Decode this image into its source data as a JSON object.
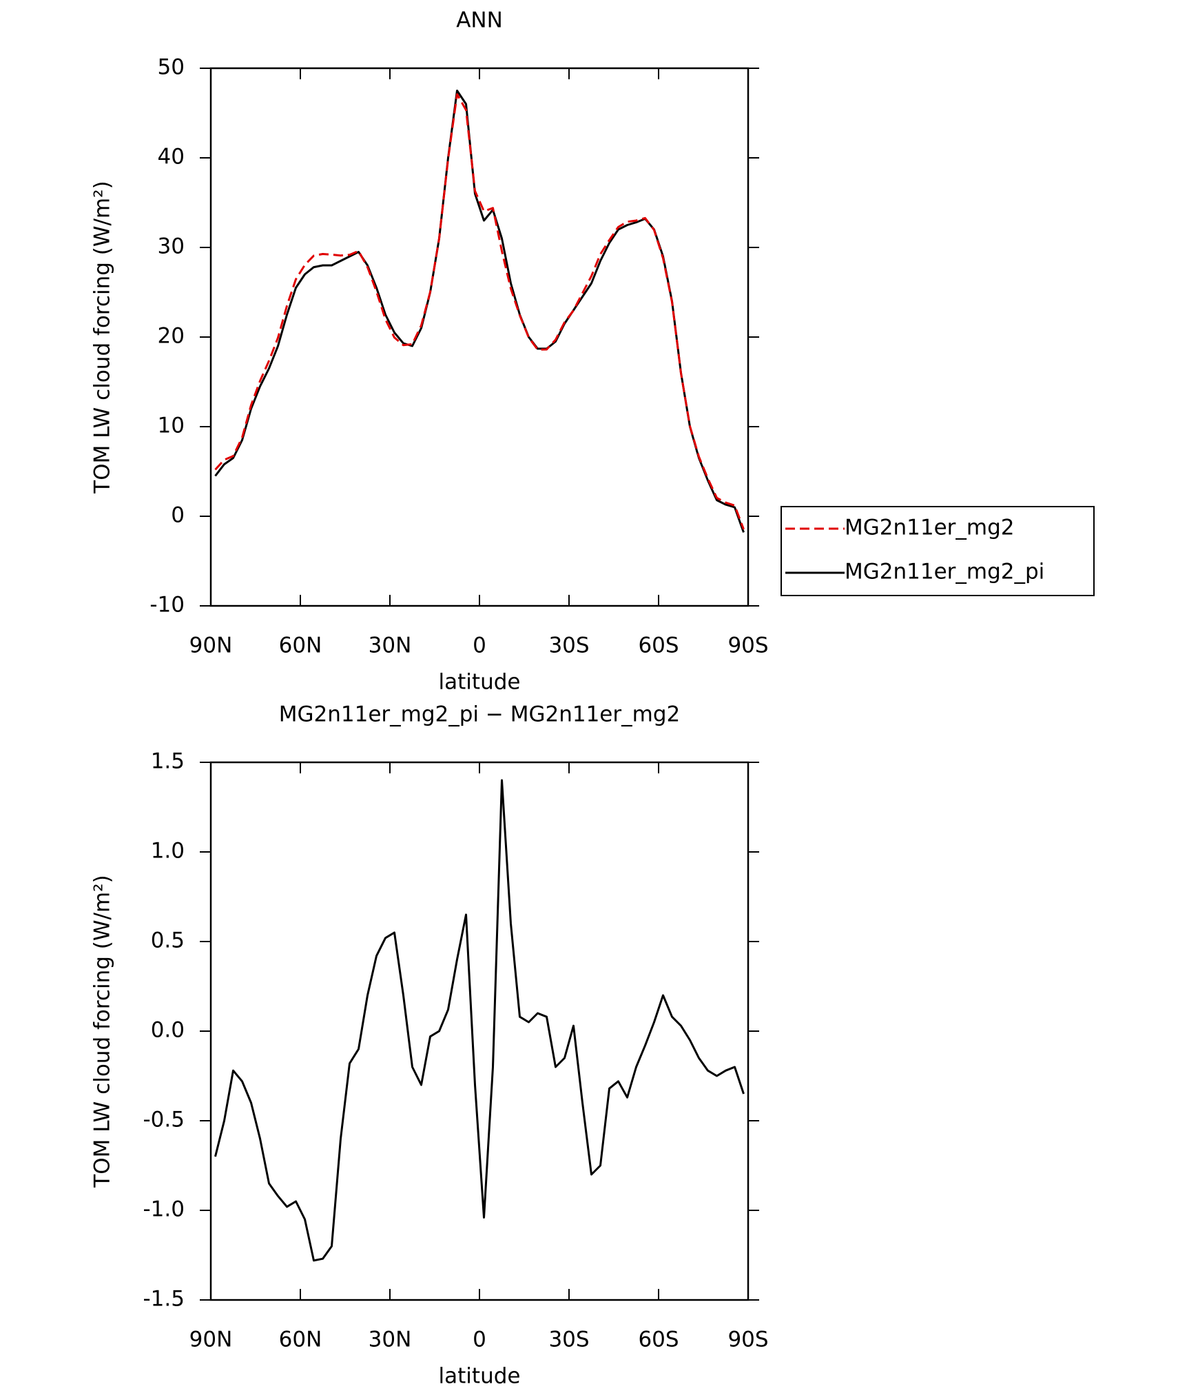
{
  "chart_data": [
    {
      "type": "line",
      "title": "ANN",
      "x_label": "latitude",
      "y_label": "TOM LW cloud forcing (W/m²)",
      "x": [
        88.5,
        85.5,
        82.5,
        79.5,
        76.5,
        73.5,
        70.5,
        67.5,
        64.5,
        61.5,
        58.5,
        55.5,
        52.5,
        49.5,
        46.5,
        43.5,
        40.5,
        37.5,
        34.5,
        31.5,
        28.5,
        25.5,
        22.5,
        19.5,
        16.5,
        13.5,
        10.5,
        7.5,
        4.5,
        1.5,
        -1.5,
        -4.5,
        -7.5,
        -10.5,
        -13.5,
        -16.5,
        -19.5,
        -22.5,
        -25.5,
        -28.5,
        -31.5,
        -34.5,
        -37.5,
        -40.5,
        -43.5,
        -46.5,
        -49.5,
        -52.5,
        -55.5,
        -58.5,
        -61.5,
        -64.5,
        -67.5,
        -70.5,
        -73.5,
        -76.5,
        -79.5,
        -82.5,
        -85.5,
        -88.5
      ],
      "xlim": [
        90,
        -90
      ],
      "xticks": [
        {
          "value": 90,
          "label": "90N"
        },
        {
          "value": 60,
          "label": "60N"
        },
        {
          "value": 30,
          "label": "30N"
        },
        0,
        {
          "value": -30,
          "label": "30S"
        },
        {
          "value": -60,
          "label": "60S"
        },
        {
          "value": -90,
          "label": "90S"
        }
      ],
      "ylim": [
        -10,
        50
      ],
      "yticks": [
        -10,
        0,
        10,
        20,
        30,
        40,
        50
      ],
      "legend": "right",
      "series": [
        {
          "name": "MG2n11er_mg2_pi",
          "color": "#000000",
          "dash": "solid",
          "values": [
            4.5,
            5.8,
            6.5,
            8.5,
            12,
            14.5,
            16.5,
            19,
            22.5,
            25.5,
            27,
            27.8,
            28,
            28,
            28.5,
            29,
            29.5,
            28,
            25.5,
            22.5,
            20.5,
            19.3,
            19,
            21,
            25,
            31,
            40,
            47.5,
            46,
            36,
            33,
            34.2,
            31,
            26,
            22.5,
            20,
            18.7,
            18.7,
            19.5,
            21.5,
            23,
            24.5,
            26,
            28.5,
            30.5,
            32,
            32.5,
            32.8,
            33.2,
            32,
            29,
            24,
            16,
            10,
            6.5,
            4,
            1.8,
            1.3,
            1,
            -1.8
          ]
        },
        {
          "name": "MG2n11er_mg2",
          "color": "#e00000",
          "dash": "dashed",
          "values": [
            5.2,
            6.3,
            6.72,
            8.78,
            12.4,
            15.1,
            17.35,
            19.92,
            23.48,
            26.45,
            28.05,
            29.08,
            29.27,
            29.2,
            29.1,
            29.18,
            29.6,
            27.8,
            25.08,
            21.98,
            19.95,
            19.1,
            19.2,
            21.3,
            25.03,
            31,
            39.88,
            47.1,
            45.35,
            36.3,
            34.04,
            34.4,
            29.6,
            25.4,
            22.42,
            19.95,
            18.6,
            18.62,
            19.7,
            21.65,
            22.97,
            24.9,
            26.8,
            29.25,
            30.82,
            32.28,
            32.87,
            33,
            33.28,
            31.95,
            28.8,
            23.92,
            15.97,
            10.05,
            6.65,
            4.22,
            2.05,
            1.52,
            1.2,
            -1.45
          ]
        }
      ]
    },
    {
      "type": "line",
      "title": "MG2n11er_mg2_pi − MG2n11er_mg2",
      "x_label": "latitude",
      "y_label": "TOM LW cloud forcing (W/m²)",
      "x": [
        88.5,
        85.5,
        82.5,
        79.5,
        76.5,
        73.5,
        70.5,
        67.5,
        64.5,
        61.5,
        58.5,
        55.5,
        52.5,
        49.5,
        46.5,
        43.5,
        40.5,
        37.5,
        34.5,
        31.5,
        28.5,
        25.5,
        22.5,
        19.5,
        16.5,
        13.5,
        10.5,
        7.5,
        4.5,
        1.5,
        -1.5,
        -4.5,
        -7.5,
        -10.5,
        -13.5,
        -16.5,
        -19.5,
        -22.5,
        -25.5,
        -28.5,
        -31.5,
        -34.5,
        -37.5,
        -40.5,
        -43.5,
        -46.5,
        -49.5,
        -52.5,
        -55.5,
        -58.5,
        -61.5,
        -64.5,
        -67.5,
        -70.5,
        -73.5,
        -76.5,
        -79.5,
        -82.5,
        -85.5,
        -88.5
      ],
      "xlim": [
        90,
        -90
      ],
      "xticks": [
        {
          "value": 90,
          "label": "90N"
        },
        {
          "value": 60,
          "label": "60N"
        },
        {
          "value": 30,
          "label": "30N"
        },
        0,
        {
          "value": -30,
          "label": "30S"
        },
        {
          "value": -60,
          "label": "60S"
        },
        {
          "value": -90,
          "label": "90S"
        }
      ],
      "ylim": [
        -1.5,
        1.5
      ],
      "yticks": [
        -1.5,
        {
          "value": -1,
          "label": "-1.0"
        },
        -0.5,
        {
          "value": 0,
          "label": "0.0"
        },
        0.5,
        {
          "value": 1,
          "label": "1.0"
        },
        1.5
      ],
      "series": [
        {
          "color": "#000000",
          "dash": "solid",
          "values": [
            -0.7,
            -0.5,
            -0.22,
            -0.28,
            -0.4,
            -0.6,
            -0.85,
            -0.92,
            -0.98,
            -0.95,
            -1.05,
            -1.28,
            -1.27,
            -1.2,
            -0.6,
            -0.18,
            -0.1,
            0.2,
            0.42,
            0.52,
            0.55,
            0.2,
            -0.2,
            -0.3,
            -0.03,
            0,
            0.12,
            0.4,
            0.65,
            -0.3,
            -1.04,
            -0.2,
            1.4,
            0.6,
            0.08,
            0.05,
            0.1,
            0.08,
            -0.2,
            -0.15,
            0.03,
            -0.4,
            -0.8,
            -0.75,
            -0.32,
            -0.28,
            -0.37,
            -0.2,
            -0.08,
            0.05,
            0.2,
            0.08,
            0.03,
            -0.05,
            -0.15,
            -0.22,
            -0.25,
            -0.22,
            -0.2,
            -0.35
          ]
        }
      ]
    }
  ]
}
